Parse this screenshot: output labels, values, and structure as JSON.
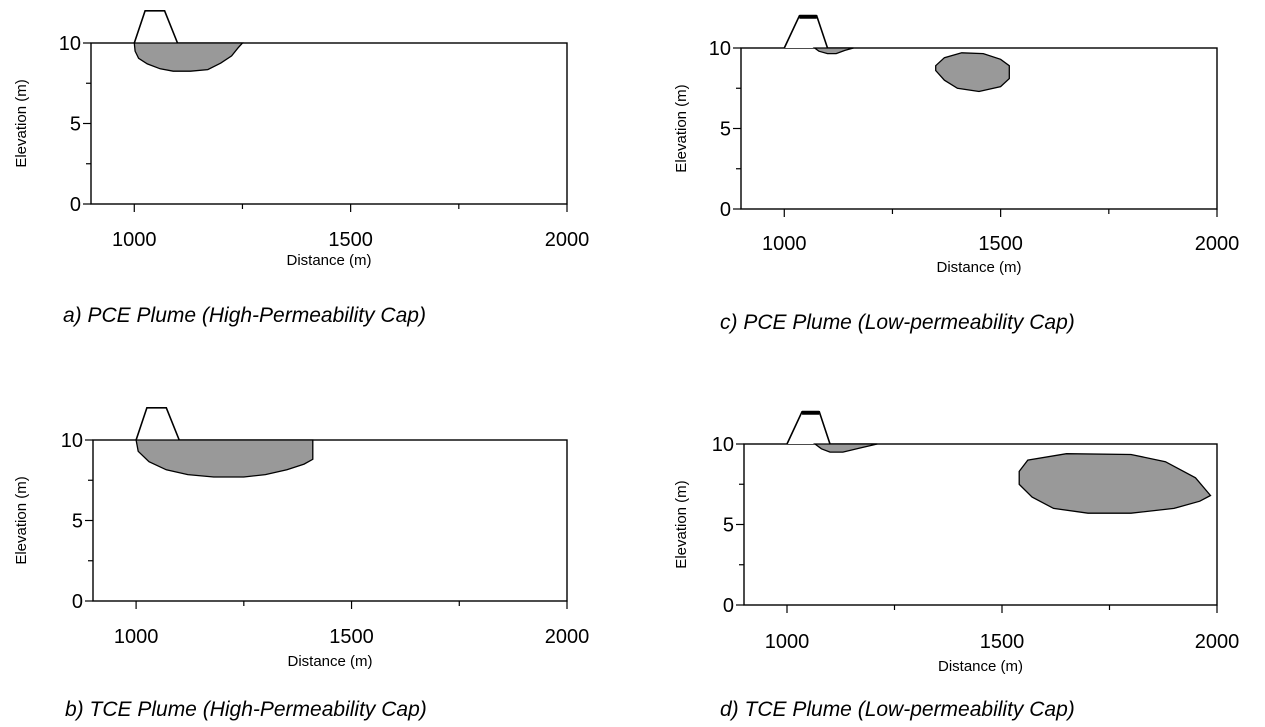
{
  "chart_data": [
    {
      "id": "a",
      "type": "area",
      "caption": "a)  PCE Plume  (High-Permeability Cap)",
      "xlabel": "Distance (m)",
      "ylabel": "Elevation (m)",
      "xlim": [
        900,
        2000
      ],
      "ylim": [
        0,
        10
      ],
      "xticks": [
        1000,
        1500,
        2000
      ],
      "yticks": [
        0,
        5,
        10
      ],
      "landfill": {
        "x": [
          1000,
          1025,
          1070,
          1100
        ],
        "y": [
          10,
          12,
          12,
          10
        ],
        "filled_top": false
      },
      "plume": {
        "x": [
          1000,
          1002,
          1010,
          1030,
          1060,
          1090,
          1130,
          1170,
          1200,
          1225,
          1240,
          1250
        ],
        "y": [
          10,
          9.5,
          9.05,
          8.7,
          8.4,
          8.25,
          8.25,
          8.35,
          8.75,
          9.2,
          9.7,
          10
        ]
      },
      "plume_color": "#999999"
    },
    {
      "id": "b",
      "type": "area",
      "caption": "b)  TCE Plume  (High-Permeability Cap)",
      "xlabel": "Distance (m)",
      "ylabel": "Elevation (m)",
      "xlim": [
        900,
        2000
      ],
      "ylim": [
        0,
        10
      ],
      "xticks": [
        1000,
        1500,
        2000
      ],
      "yticks": [
        0,
        5,
        10
      ],
      "landfill": {
        "x": [
          1000,
          1025,
          1070,
          1100
        ],
        "y": [
          10,
          12,
          12,
          10
        ],
        "filled_top": false
      },
      "plume": {
        "x": [
          1000,
          1005,
          1030,
          1070,
          1120,
          1180,
          1250,
          1300,
          1350,
          1390,
          1410,
          1410
        ],
        "y": [
          10,
          9.3,
          8.65,
          8.15,
          7.85,
          7.7,
          7.7,
          7.85,
          8.15,
          8.5,
          8.8,
          10
        ]
      },
      "plume_color": "#999999"
    },
    {
      "id": "c",
      "type": "area",
      "caption": "c)  PCE Plume  (Low-permeability Cap)",
      "xlabel": "Distance (m)",
      "ylabel": "Elevation (m)",
      "xlim": [
        900,
        2000
      ],
      "ylim": [
        0,
        10
      ],
      "xticks": [
        1000,
        1500,
        2000
      ],
      "yticks": [
        0,
        5,
        10
      ],
      "landfill": {
        "x": [
          1000,
          1035,
          1075,
          1100
        ],
        "y": [
          10,
          12,
          12,
          10
        ],
        "filled_top": true
      },
      "plume_shallow": {
        "x": [
          1070,
          1080,
          1100,
          1120,
          1140,
          1160
        ],
        "y": [
          10,
          9.8,
          9.65,
          9.65,
          9.85,
          10
        ]
      },
      "plume": {
        "x": [
          1350,
          1370,
          1410,
          1460,
          1500,
          1520,
          1520,
          1500,
          1450,
          1400,
          1370,
          1350
        ],
        "y": [
          8.9,
          9.4,
          9.7,
          9.65,
          9.3,
          8.9,
          8.1,
          7.6,
          7.3,
          7.5,
          8.0,
          8.6
        ]
      },
      "plume_color": "#999999"
    },
    {
      "id": "d",
      "type": "area",
      "caption": "d)  TCE Plume  (Low-permeability Cap)",
      "xlabel": "Distance (m)",
      "ylabel": "Elevation (m)",
      "xlim": [
        900,
        2000
      ],
      "ylim": [
        0,
        10
      ],
      "xticks": [
        1000,
        1500,
        2000
      ],
      "yticks": [
        0,
        5,
        10
      ],
      "landfill": {
        "x": [
          1000,
          1035,
          1075,
          1100
        ],
        "y": [
          10,
          12,
          12,
          10
        ],
        "filled_top": true
      },
      "plume_shallow": {
        "x": [
          1065,
          1080,
          1100,
          1130,
          1170,
          1210
        ],
        "y": [
          10,
          9.7,
          9.5,
          9.5,
          9.75,
          10
        ]
      },
      "plume": {
        "x": [
          1540,
          1560,
          1650,
          1800,
          1880,
          1950,
          1985,
          1960,
          1900,
          1800,
          1700,
          1620,
          1570,
          1540
        ],
        "y": [
          8.3,
          9.0,
          9.4,
          9.35,
          8.9,
          7.9,
          6.8,
          6.45,
          6.0,
          5.7,
          5.7,
          6.0,
          6.7,
          7.5
        ]
      },
      "plume_color": "#999999"
    }
  ]
}
